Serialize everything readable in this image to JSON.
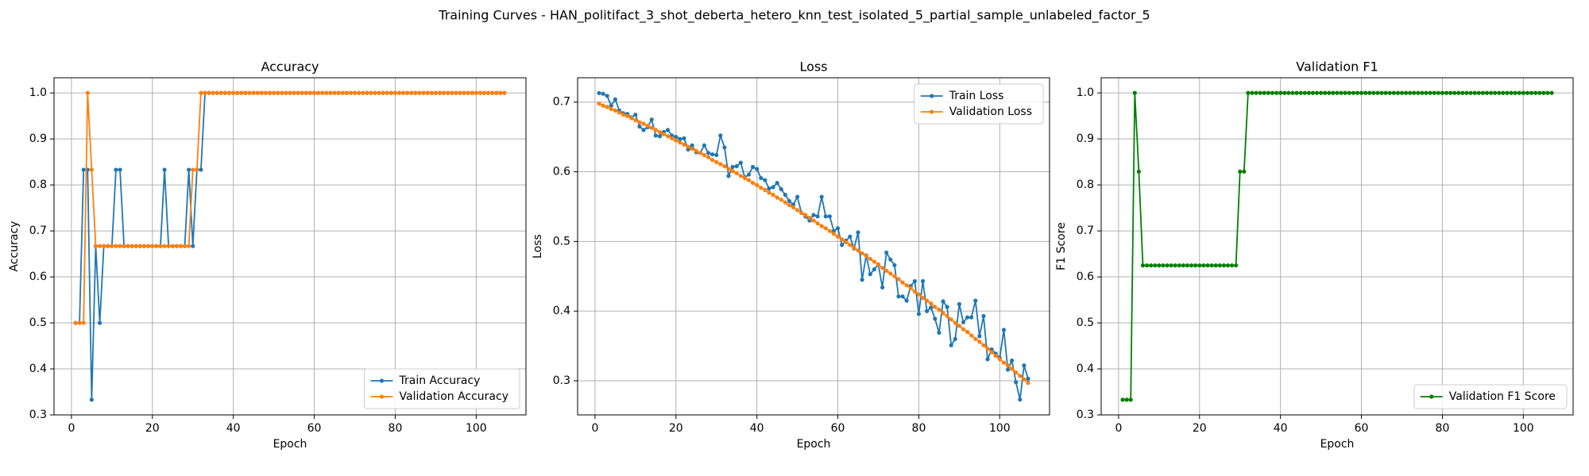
{
  "title": "Training Curves - HAN_politifact_3_shot_deberta_hetero_knn_test_isolated_5_partial_sample_unlabeled_factor_5",
  "chart_data": [
    {
      "type": "line",
      "title": "Accuracy",
      "xlabel": "Epoch",
      "ylabel": "Accuracy",
      "x": [
        1,
        2,
        3,
        4,
        5,
        6,
        7,
        8,
        9,
        10,
        11,
        12,
        13,
        14,
        15,
        16,
        17,
        18,
        19,
        20,
        21,
        22,
        23,
        24,
        25,
        26,
        27,
        28,
        29,
        30,
        31,
        32,
        33,
        34,
        35,
        36,
        37,
        38,
        39,
        40,
        41,
        42,
        43,
        44,
        45,
        46,
        47,
        48,
        49,
        50,
        51,
        52,
        53,
        54,
        55,
        56,
        57,
        58,
        59,
        60,
        61,
        62,
        63,
        64,
        65,
        66,
        67,
        68,
        69,
        70,
        71,
        72,
        73,
        74,
        75,
        76,
        77,
        78,
        79,
        80,
        81,
        82,
        83,
        84,
        85,
        86,
        87,
        88,
        89,
        90,
        91,
        92,
        93,
        94,
        95,
        96,
        97,
        98,
        99,
        100,
        101,
        102,
        103,
        104,
        105,
        106,
        107
      ],
      "series": [
        {
          "name": "Train Accuracy",
          "color": "#1f77b4",
          "values": [
            0.5,
            0.5,
            0.833,
            0.833,
            0.333,
            0.667,
            0.5,
            0.667,
            0.667,
            0.667,
            0.833,
            0.833,
            0.667,
            0.667,
            0.667,
            0.667,
            0.667,
            0.667,
            0.667,
            0.667,
            0.667,
            0.667,
            0.833,
            0.667,
            0.667,
            0.667,
            0.667,
            0.667,
            0.833,
            0.667,
            0.833,
            0.833,
            1,
            1,
            1,
            1,
            1,
            1,
            1,
            1,
            1,
            1,
            1,
            1,
            1,
            1,
            1,
            1,
            1,
            1,
            1,
            1,
            1,
            1,
            1,
            1,
            1,
            1,
            1,
            1,
            1,
            1,
            1,
            1,
            1,
            1,
            1,
            1,
            1,
            1,
            1,
            1,
            1,
            1,
            1,
            1,
            1,
            1,
            1,
            1,
            1,
            1,
            1,
            1,
            1,
            1,
            1,
            1,
            1,
            1,
            1,
            1,
            1,
            1,
            1,
            1,
            1,
            1,
            1,
            1,
            1,
            1,
            1,
            1,
            1,
            1,
            1
          ]
        },
        {
          "name": "Validation Accuracy",
          "color": "#ff7f0e",
          "values": [
            0.5,
            0.5,
            0.5,
            1,
            0.833,
            0.667,
            0.667,
            0.667,
            0.667,
            0.667,
            0.667,
            0.667,
            0.667,
            0.667,
            0.667,
            0.667,
            0.667,
            0.667,
            0.667,
            0.667,
            0.667,
            0.667,
            0.667,
            0.667,
            0.667,
            0.667,
            0.667,
            0.667,
            0.667,
            0.833,
            0.833,
            1,
            1,
            1,
            1,
            1,
            1,
            1,
            1,
            1,
            1,
            1,
            1,
            1,
            1,
            1,
            1,
            1,
            1,
            1,
            1,
            1,
            1,
            1,
            1,
            1,
            1,
            1,
            1,
            1,
            1,
            1,
            1,
            1,
            1,
            1,
            1,
            1,
            1,
            1,
            1,
            1,
            1,
            1,
            1,
            1,
            1,
            1,
            1,
            1,
            1,
            1,
            1,
            1,
            1,
            1,
            1,
            1,
            1,
            1,
            1,
            1,
            1,
            1,
            1,
            1,
            1,
            1,
            1,
            1,
            1,
            1,
            1,
            1,
            1,
            1,
            1
          ]
        }
      ],
      "xlim": [
        -4.3,
        112.3
      ],
      "xticks": [
        0,
        20,
        40,
        60,
        80,
        100
      ],
      "ylim": [
        0.3,
        1.033
      ],
      "yticks": [
        0.3,
        0.4,
        0.5,
        0.6,
        0.7,
        0.8,
        0.9,
        {
          "value": 1,
          "label": "1.0"
        }
      ],
      "grid": true,
      "legend": "lower right"
    },
    {
      "type": "line",
      "title": "Loss",
      "xlabel": "Epoch",
      "ylabel": "Loss",
      "x": [
        1,
        2,
        3,
        4,
        5,
        6,
        7,
        8,
        9,
        10,
        11,
        12,
        13,
        14,
        15,
        16,
        17,
        18,
        19,
        20,
        21,
        22,
        23,
        24,
        25,
        26,
        27,
        28,
        29,
        30,
        31,
        32,
        33,
        34,
        35,
        36,
        37,
        38,
        39,
        40,
        41,
        42,
        43,
        44,
        45,
        46,
        47,
        48,
        49,
        50,
        51,
        52,
        53,
        54,
        55,
        56,
        57,
        58,
        59,
        60,
        61,
        62,
        63,
        64,
        65,
        66,
        67,
        68,
        69,
        70,
        71,
        72,
        73,
        74,
        75,
        76,
        77,
        78,
        79,
        80,
        81,
        82,
        83,
        84,
        85,
        86,
        87,
        88,
        89,
        90,
        91,
        92,
        93,
        94,
        95,
        96,
        97,
        98,
        99,
        100,
        101,
        102,
        103,
        104,
        105,
        106,
        107
      ],
      "series": [
        {
          "name": "Train Loss",
          "color": "#1f77b4",
          "values": [
            0.713,
            0.712,
            0.709,
            0.695,
            0.704,
            0.688,
            0.684,
            0.683,
            0.678,
            0.682,
            0.665,
            0.66,
            0.664,
            0.675,
            0.652,
            0.651,
            0.657,
            0.66,
            0.652,
            0.65,
            0.647,
            0.648,
            0.632,
            0.638,
            0.628,
            0.627,
            0.638,
            0.627,
            0.625,
            0.624,
            0.652,
            0.635,
            0.594,
            0.607,
            0.608,
            0.613,
            0.592,
            0.596,
            0.607,
            0.604,
            0.591,
            0.588,
            0.576,
            0.578,
            0.584,
            0.575,
            0.567,
            0.558,
            0.553,
            0.564,
            0.541,
            0.536,
            0.53,
            0.538,
            0.536,
            0.564,
            0.536,
            0.536,
            0.515,
            0.519,
            0.495,
            0.501,
            0.507,
            0.49,
            0.513,
            0.445,
            0.48,
            0.453,
            0.46,
            0.467,
            0.434,
            0.484,
            0.474,
            0.466,
            0.421,
            0.421,
            0.415,
            0.436,
            0.443,
            0.396,
            0.443,
            0.4,
            0.405,
            0.389,
            0.369,
            0.414,
            0.406,
            0.351,
            0.36,
            0.41,
            0.384,
            0.391,
            0.391,
            0.415,
            0.364,
            0.393,
            0.331,
            0.345,
            0.339,
            0.333,
            0.373,
            0.316,
            0.329,
            0.298,
            0.273,
            0.322,
            0.303
          ]
        },
        {
          "name": "Validation Loss",
          "color": "#ff7f0e",
          "values": [
            0.698,
            0.695,
            0.693,
            0.69,
            0.688,
            0.685,
            0.682,
            0.68,
            0.677,
            0.674,
            0.671,
            0.669,
            0.666,
            0.663,
            0.66,
            0.657,
            0.654,
            0.651,
            0.648,
            0.645,
            0.642,
            0.639,
            0.636,
            0.633,
            0.63,
            0.627,
            0.624,
            0.621,
            0.617,
            0.614,
            0.611,
            0.608,
            0.604,
            0.601,
            0.598,
            0.594,
            0.591,
            0.588,
            0.584,
            0.581,
            0.577,
            0.574,
            0.57,
            0.567,
            0.563,
            0.56,
            0.556,
            0.552,
            0.549,
            0.545,
            0.541,
            0.538,
            0.534,
            0.53,
            0.526,
            0.522,
            0.519,
            0.515,
            0.511,
            0.507,
            0.503,
            0.499,
            0.495,
            0.491,
            0.487,
            0.483,
            0.479,
            0.475,
            0.471,
            0.467,
            0.462,
            0.458,
            0.454,
            0.45,
            0.446,
            0.441,
            0.437,
            0.433,
            0.428,
            0.424,
            0.419,
            0.415,
            0.411,
            0.406,
            0.402,
            0.397,
            0.393,
            0.388,
            0.383,
            0.379,
            0.374,
            0.37,
            0.365,
            0.36,
            0.356,
            0.351,
            0.346,
            0.341,
            0.336,
            0.331,
            0.326,
            0.322,
            0.317,
            0.312,
            0.307,
            0.302,
            0.297
          ]
        }
      ],
      "xlim": [
        -4.3,
        112.3
      ],
      "xticks": [
        0,
        20,
        40,
        60,
        80,
        100
      ],
      "ylim": [
        0.251,
        0.735
      ],
      "yticks": [
        0.3,
        0.4,
        0.5,
        0.6,
        0.7
      ],
      "grid": true,
      "legend": "upper right"
    },
    {
      "type": "line",
      "title": "Validation F1",
      "xlabel": "Epoch",
      "ylabel": "F1 Score",
      "x": [
        1,
        2,
        3,
        4,
        5,
        6,
        7,
        8,
        9,
        10,
        11,
        12,
        13,
        14,
        15,
        16,
        17,
        18,
        19,
        20,
        21,
        22,
        23,
        24,
        25,
        26,
        27,
        28,
        29,
        30,
        31,
        32,
        33,
        34,
        35,
        36,
        37,
        38,
        39,
        40,
        41,
        42,
        43,
        44,
        45,
        46,
        47,
        48,
        49,
        50,
        51,
        52,
        53,
        54,
        55,
        56,
        57,
        58,
        59,
        60,
        61,
        62,
        63,
        64,
        65,
        66,
        67,
        68,
        69,
        70,
        71,
        72,
        73,
        74,
        75,
        76,
        77,
        78,
        79,
        80,
        81,
        82,
        83,
        84,
        85,
        86,
        87,
        88,
        89,
        90,
        91,
        92,
        93,
        94,
        95,
        96,
        97,
        98,
        99,
        100,
        101,
        102,
        103,
        104,
        105,
        106,
        107
      ],
      "series": [
        {
          "name": "Validation F1 Score",
          "color": "#008000",
          "values": [
            0.333,
            0.333,
            0.333,
            1,
            0.829,
            0.625,
            0.625,
            0.625,
            0.625,
            0.625,
            0.625,
            0.625,
            0.625,
            0.625,
            0.625,
            0.625,
            0.625,
            0.625,
            0.625,
            0.625,
            0.625,
            0.625,
            0.625,
            0.625,
            0.625,
            0.625,
            0.625,
            0.625,
            0.625,
            0.829,
            0.829,
            1,
            1,
            1,
            1,
            1,
            1,
            1,
            1,
            1,
            1,
            1,
            1,
            1,
            1,
            1,
            1,
            1,
            1,
            1,
            1,
            1,
            1,
            1,
            1,
            1,
            1,
            1,
            1,
            1,
            1,
            1,
            1,
            1,
            1,
            1,
            1,
            1,
            1,
            1,
            1,
            1,
            1,
            1,
            1,
            1,
            1,
            1,
            1,
            1,
            1,
            1,
            1,
            1,
            1,
            1,
            1,
            1,
            1,
            1,
            1,
            1,
            1,
            1,
            1,
            1,
            1,
            1,
            1,
            1,
            1,
            1,
            1,
            1,
            1,
            1,
            1
          ]
        }
      ],
      "xlim": [
        -4.3,
        112.3
      ],
      "xticks": [
        0,
        20,
        40,
        60,
        80,
        100
      ],
      "ylim": [
        0.3,
        1.033
      ],
      "yticks": [
        0.3,
        0.4,
        0.5,
        0.6,
        0.7,
        0.8,
        0.9,
        {
          "value": 1,
          "label": "1.0"
        }
      ],
      "grid": true,
      "legend": "lower right"
    }
  ]
}
